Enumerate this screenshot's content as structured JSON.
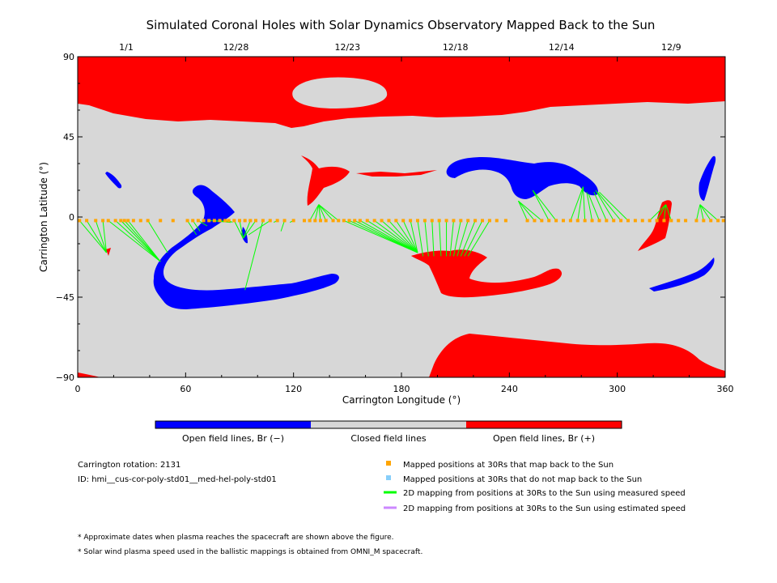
{
  "chart_data": {
    "type": "map",
    "title": "Simulated Coronal Holes with Solar Dynamics Observatory Mapped Back to the Sun",
    "xlabel": "Carrington Longitude (°)",
    "ylabel": "Carrington Latitude (°)",
    "xlim": [
      0,
      360
    ],
    "ylim": [
      -90,
      90
    ],
    "x_ticks": [
      "0",
      "60",
      "120",
      "180",
      "240",
      "300",
      "360"
    ],
    "y_ticks": [
      "90",
      "45",
      "0",
      "−45",
      "−90"
    ],
    "date_ticks": [
      {
        "lon": 27,
        "label": "1/1"
      },
      {
        "lon": 88,
        "label": "12/28"
      },
      {
        "lon": 150,
        "label": "12/23"
      },
      {
        "lon": 210,
        "label": "12/18"
      },
      {
        "lon": 269,
        "label": "12/14"
      },
      {
        "lon": 330,
        "label": "12/9"
      }
    ],
    "colorbar": [
      "Open field lines, Br (−)",
      "Closed field lines",
      "Open field lines, Br (+)"
    ],
    "colors": {
      "negative": "#0000ff",
      "closed": "#d7d7d7",
      "positive": "#ff0000",
      "mapped": "#ffa500",
      "unmapped": "#87cefa",
      "measured": "#00ff00",
      "estimated": "#cc88ff"
    },
    "mapped_points": {
      "lat": -2,
      "lons": [
        1,
        5,
        10,
        14,
        17,
        21,
        24,
        26,
        28,
        31,
        35,
        39,
        46,
        53,
        61,
        64,
        67,
        70,
        73,
        76,
        79,
        82,
        84,
        87,
        90,
        93,
        96,
        99,
        103,
        107,
        111,
        115,
        120,
        126,
        129,
        132,
        135,
        138,
        142,
        145,
        148,
        151,
        154,
        157,
        161,
        165,
        169,
        173,
        177,
        181,
        185,
        189,
        193,
        197,
        201,
        205,
        209,
        213,
        217,
        221,
        225,
        229,
        233,
        238,
        250,
        254,
        258,
        262,
        266,
        270,
        274,
        278,
        282,
        286,
        290,
        294,
        298,
        302,
        306,
        310,
        314,
        318,
        322,
        326,
        330,
        334,
        338,
        344,
        348,
        352,
        356,
        359
      ]
    },
    "mappings": [
      [
        1,
        -2,
        16,
        -20
      ],
      [
        5,
        -2,
        16,
        -20
      ],
      [
        10,
        -2,
        16,
        -20
      ],
      [
        14,
        -2,
        16,
        -20
      ],
      [
        17,
        -2,
        46,
        -25
      ],
      [
        21,
        -2,
        46,
        -25
      ],
      [
        24,
        -2,
        46,
        -25
      ],
      [
        26,
        -2,
        46,
        -25
      ],
      [
        28,
        -2,
        46,
        -25
      ],
      [
        39,
        -2,
        50,
        -20
      ],
      [
        61,
        -2,
        66,
        -10
      ],
      [
        64,
        -2,
        68,
        -8
      ],
      [
        67,
        -2,
        72,
        -5
      ],
      [
        73,
        -2,
        85,
        -3
      ],
      [
        76,
        -2,
        85,
        -3
      ],
      [
        79,
        -2,
        85,
        -3
      ],
      [
        82,
        -2,
        85,
        -3
      ],
      [
        84,
        -2,
        86,
        -3
      ],
      [
        87,
        -2,
        92,
        -12
      ],
      [
        90,
        -2,
        92,
        -12
      ],
      [
        96,
        -2,
        92,
        -12
      ],
      [
        99,
        -2,
        92,
        -12
      ],
      [
        103,
        -2,
        93,
        -41
      ],
      [
        107,
        -2,
        95,
        -10
      ],
      [
        115,
        -2,
        113,
        -8
      ],
      [
        111,
        -2,
        109,
        -3
      ],
      [
        120,
        -2,
        118,
        -3
      ],
      [
        129,
        -2,
        134,
        7
      ],
      [
        132,
        -2,
        134,
        7
      ],
      [
        135,
        -2,
        134,
        7
      ],
      [
        138,
        -2,
        134,
        7
      ],
      [
        142,
        -2,
        134,
        7
      ],
      [
        145,
        -2,
        134,
        7
      ],
      [
        148,
        -2,
        189,
        -20
      ],
      [
        151,
        -2,
        189,
        -20
      ],
      [
        154,
        -2,
        189,
        -20
      ],
      [
        157,
        -2,
        189,
        -20
      ],
      [
        161,
        -2,
        189,
        -20
      ],
      [
        165,
        -2,
        189,
        -20
      ],
      [
        169,
        -2,
        189,
        -20
      ],
      [
        173,
        -2,
        189,
        -20
      ],
      [
        177,
        -2,
        189,
        -20
      ],
      [
        181,
        -2,
        189,
        -20
      ],
      [
        185,
        -2,
        189,
        -20
      ],
      [
        189,
        -2,
        192,
        -22
      ],
      [
        193,
        -2,
        195,
        -22
      ],
      [
        197,
        -2,
        198,
        -22
      ],
      [
        201,
        -2,
        202,
        -22
      ],
      [
        205,
        -2,
        205,
        -22
      ],
      [
        209,
        -2,
        207,
        -22
      ],
      [
        213,
        -2,
        209,
        -22
      ],
      [
        217,
        -2,
        211,
        -22
      ],
      [
        221,
        -2,
        213,
        -22
      ],
      [
        225,
        -2,
        215,
        -22
      ],
      [
        229,
        -2,
        217,
        -22
      ],
      [
        250,
        -2,
        245,
        9
      ],
      [
        254,
        -2,
        245,
        9
      ],
      [
        258,
        -2,
        245,
        9
      ],
      [
        262,
        -2,
        253,
        15
      ],
      [
        266,
        -2,
        253,
        15
      ],
      [
        274,
        -2,
        281,
        17
      ],
      [
        278,
        -2,
        281,
        17
      ],
      [
        282,
        -2,
        281,
        17
      ],
      [
        286,
        -2,
        283,
        14
      ],
      [
        290,
        -2,
        284,
        13
      ],
      [
        294,
        -2,
        287,
        14
      ],
      [
        298,
        -2,
        288,
        15
      ],
      [
        302,
        -2,
        289,
        14
      ],
      [
        306,
        -2,
        290,
        14
      ],
      [
        318,
        -2,
        327,
        7
      ],
      [
        322,
        -2,
        327,
        7
      ],
      [
        326,
        -2,
        327,
        7
      ],
      [
        330,
        -2,
        327,
        7
      ],
      [
        344,
        -2,
        346,
        7
      ],
      [
        348,
        -2,
        346,
        7
      ],
      [
        352,
        -2,
        346,
        7
      ],
      [
        356,
        -2,
        346,
        7
      ]
    ]
  },
  "info": {
    "rotation": "Carrington rotation: 2131",
    "model_id": "ID: hmi__cus-cor-poly-std01__med-hel-poly-std01"
  },
  "legend": {
    "mapped": "Mapped positions at 30Rs that map back to the Sun",
    "unmapped": "Mapped positions at 30Rs that do not map back to the Sun",
    "measured": "2D mapping from positions at 30Rs to the Sun using measured speed",
    "estimated": "2D mapping from positions at 30Rs to the Sun using estimated speed"
  },
  "notes": {
    "note1": "* Approximate dates when plasma reaches the spacecraft are shown above the figure.",
    "note2": "* Solar wind plasma speed used in the ballistic mappings is obtained from OMNI_M spacecraft."
  }
}
